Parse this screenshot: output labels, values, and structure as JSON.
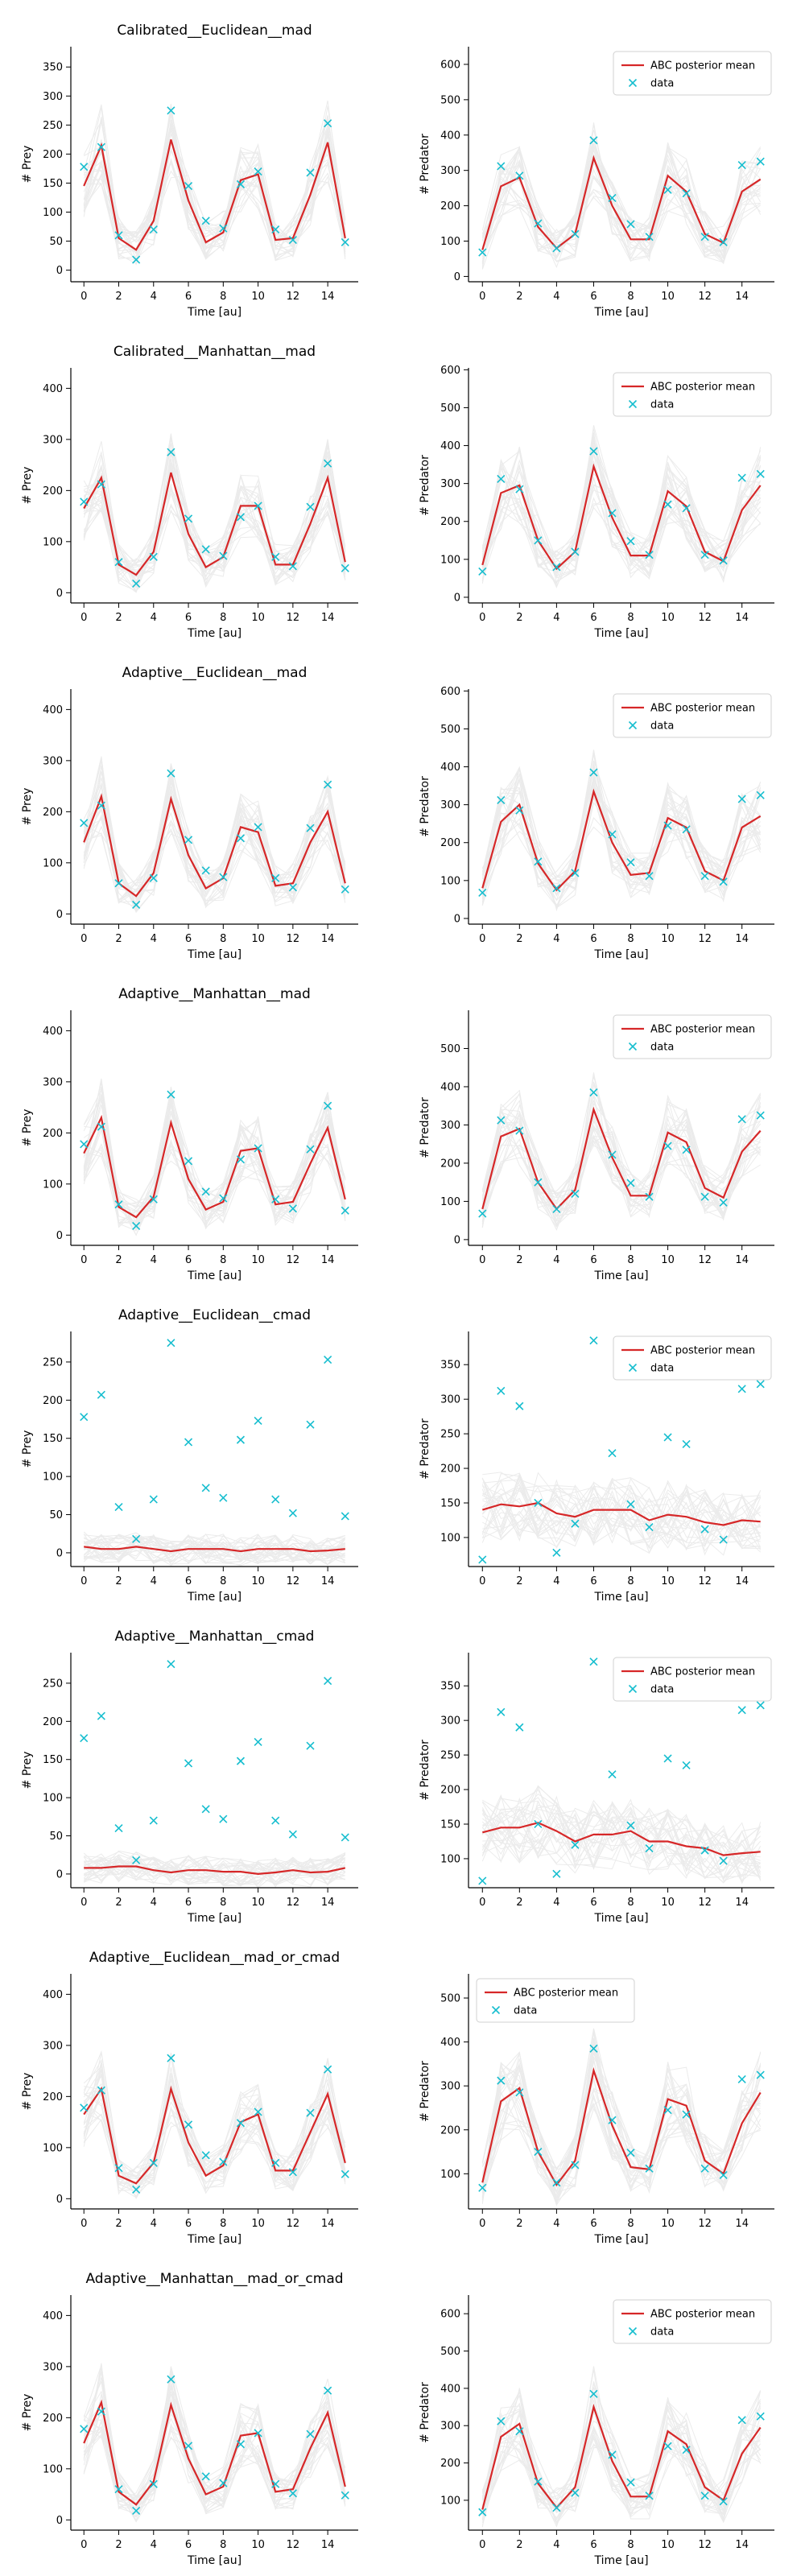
{
  "colors": {
    "posterior_mean": "#d62728",
    "data": "#17becf",
    "samples": "#c8c8c8"
  },
  "legend_labels": {
    "mean": "ABC posterior mean",
    "data": "data"
  },
  "shared": {
    "xlabel": "Time [au]",
    "ylabel_prey": "# Prey",
    "ylabel_predator": "# Predator",
    "x": [
      0,
      1,
      2,
      3,
      4,
      5,
      6,
      7,
      8,
      9,
      10,
      11,
      12,
      13,
      14,
      15
    ],
    "xticks": [
      0,
      2,
      4,
      6,
      8,
      10,
      12,
      14
    ],
    "xlim": [
      -0.75,
      15.75
    ]
  },
  "chart_data": [
    {
      "type": "line",
      "title": "Calibrated__Euclidean__mad",
      "xlabel": "Time [au]",
      "ylabel": "# Prey",
      "ylim": [
        -20,
        385
      ],
      "yticks": [
        0,
        50,
        100,
        150,
        200,
        250,
        300,
        350
      ],
      "series": [
        {
          "name": "ABC posterior mean",
          "values": [
            145,
            215,
            55,
            35,
            85,
            225,
            120,
            48,
            65,
            155,
            165,
            52,
            55,
            130,
            220,
            55
          ]
        },
        {
          "name": "data",
          "values": [
            178,
            212,
            60,
            18,
            70,
            275,
            145,
            85,
            72,
            148,
            170,
            70,
            52,
            168,
            253,
            48
          ]
        }
      ]
    },
    {
      "type": "line",
      "title": "",
      "xlabel": "Time [au]",
      "ylabel": "# Predator",
      "legend": "top-right",
      "ylim": [
        -15,
        650
      ],
      "yticks": [
        0,
        100,
        200,
        300,
        400,
        500,
        600
      ],
      "series": [
        {
          "name": "ABC posterior mean",
          "values": [
            75,
            255,
            280,
            140,
            80,
            120,
            335,
            200,
            105,
            105,
            285,
            240,
            120,
            95,
            240,
            275
          ]
        },
        {
          "name": "data",
          "values": [
            68,
            312,
            285,
            150,
            80,
            120,
            385,
            222,
            148,
            112,
            245,
            235,
            112,
            97,
            315,
            325
          ]
        }
      ]
    },
    {
      "type": "line",
      "title": "Calibrated__Manhattan__mad",
      "xlabel": "Time [au]",
      "ylabel": "# Prey",
      "ylim": [
        -20,
        440
      ],
      "yticks": [
        0,
        100,
        200,
        300,
        400
      ],
      "series": [
        {
          "name": "ABC posterior mean",
          "values": [
            165,
            225,
            55,
            35,
            80,
            235,
            115,
            50,
            70,
            170,
            170,
            55,
            55,
            135,
            225,
            60
          ]
        },
        {
          "name": "data",
          "values": [
            178,
            212,
            60,
            18,
            70,
            275,
            145,
            85,
            72,
            148,
            170,
            70,
            52,
            168,
            253,
            48
          ]
        }
      ]
    },
    {
      "type": "line",
      "title": "",
      "xlabel": "Time [au]",
      "ylabel": "# Predator",
      "legend": "top-right",
      "ylim": [
        -15,
        605
      ],
      "yticks": [
        0,
        100,
        200,
        300,
        400,
        500,
        600
      ],
      "series": [
        {
          "name": "ABC posterior mean",
          "values": [
            85,
            275,
            295,
            150,
            75,
            120,
            345,
            210,
            110,
            110,
            280,
            240,
            120,
            95,
            230,
            295
          ]
        },
        {
          "name": "data",
          "values": [
            68,
            312,
            285,
            150,
            80,
            120,
            385,
            222,
            148,
            112,
            245,
            235,
            112,
            97,
            315,
            325
          ]
        }
      ]
    },
    {
      "type": "line",
      "title": "Adaptive__Euclidean__mad",
      "xlabel": "Time [au]",
      "ylabel": "# Prey",
      "ylim": [
        -20,
        440
      ],
      "yticks": [
        0,
        100,
        200,
        300,
        400
      ],
      "series": [
        {
          "name": "ABC posterior mean",
          "values": [
            140,
            230,
            60,
            35,
            80,
            225,
            115,
            50,
            70,
            170,
            160,
            55,
            60,
            140,
            200,
            60
          ]
        },
        {
          "name": "data",
          "values": [
            178,
            212,
            60,
            18,
            70,
            275,
            145,
            85,
            72,
            148,
            170,
            70,
            52,
            168,
            253,
            48
          ]
        }
      ]
    },
    {
      "type": "line",
      "title": "",
      "xlabel": "Time [au]",
      "ylabel": "# Predator",
      "legend": "top-right",
      "ylim": [
        -15,
        605
      ],
      "yticks": [
        0,
        100,
        200,
        300,
        400,
        500,
        600
      ],
      "series": [
        {
          "name": "ABC posterior mean",
          "values": [
            80,
            255,
            300,
            145,
            75,
            125,
            335,
            200,
            115,
            120,
            265,
            240,
            125,
            100,
            240,
            270
          ]
        },
        {
          "name": "data",
          "values": [
            68,
            312,
            285,
            150,
            80,
            120,
            385,
            222,
            148,
            112,
            245,
            235,
            112,
            97,
            315,
            325
          ]
        }
      ]
    },
    {
      "type": "line",
      "title": "Adaptive__Manhattan__mad",
      "xlabel": "Time [au]",
      "ylabel": "# Prey",
      "ylim": [
        -20,
        440
      ],
      "yticks": [
        0,
        100,
        200,
        300,
        400
      ],
      "series": [
        {
          "name": "ABC posterior mean",
          "values": [
            160,
            230,
            55,
            35,
            75,
            220,
            110,
            50,
            65,
            165,
            170,
            60,
            65,
            140,
            210,
            70
          ]
        },
        {
          "name": "data",
          "values": [
            178,
            212,
            60,
            18,
            70,
            275,
            145,
            85,
            72,
            148,
            170,
            70,
            52,
            168,
            253,
            48
          ]
        }
      ]
    },
    {
      "type": "line",
      "title": "",
      "xlabel": "Time [au]",
      "ylabel": "# Predator",
      "legend": "top-right",
      "ylim": [
        -15,
        600
      ],
      "yticks": [
        0,
        100,
        200,
        300,
        400,
        500
      ],
      "series": [
        {
          "name": "ABC posterior mean",
          "values": [
            80,
            270,
            290,
            150,
            80,
            130,
            340,
            215,
            115,
            115,
            280,
            255,
            135,
            110,
            230,
            285
          ]
        },
        {
          "name": "data",
          "values": [
            68,
            312,
            285,
            150,
            80,
            120,
            385,
            222,
            148,
            112,
            245,
            235,
            112,
            97,
            315,
            325
          ]
        }
      ]
    },
    {
      "type": "line",
      "title": "Adaptive__Euclidean__cmad",
      "xlabel": "Time [au]",
      "ylabel": "# Prey",
      "ylim": [
        -18,
        290
      ],
      "yticks": [
        0,
        50,
        100,
        150,
        200,
        250
      ],
      "series": [
        {
          "name": "ABC posterior mean",
          "values": [
            8,
            5,
            5,
            8,
            5,
            2,
            5,
            5,
            5,
            2,
            5,
            5,
            5,
            2,
            3,
            5
          ]
        },
        {
          "name": "data",
          "values": [
            178,
            207,
            60,
            18,
            70,
            275,
            145,
            85,
            72,
            148,
            173,
            70,
            52,
            168,
            253,
            48
          ]
        }
      ]
    },
    {
      "type": "line",
      "title": "",
      "xlabel": "Time [au]",
      "ylabel": "# Predator",
      "legend": "top-right",
      "ylim": [
        58,
        398
      ],
      "yticks": [
        100,
        150,
        200,
        250,
        300,
        350
      ],
      "series": [
        {
          "name": "ABC posterior mean",
          "values": [
            140,
            148,
            145,
            150,
            135,
            130,
            140,
            140,
            140,
            125,
            133,
            130,
            122,
            118,
            125,
            123
          ]
        },
        {
          "name": "data",
          "values": [
            68,
            312,
            290,
            150,
            78,
            120,
            385,
            222,
            148,
            115,
            245,
            235,
            112,
            97,
            315,
            322
          ]
        }
      ]
    },
    {
      "type": "line",
      "title": "Adaptive__Manhattan__cmad",
      "xlabel": "Time [au]",
      "ylabel": "# Prey",
      "ylim": [
        -18,
        290
      ],
      "yticks": [
        0,
        50,
        100,
        150,
        200,
        250
      ],
      "series": [
        {
          "name": "ABC posterior mean",
          "values": [
            8,
            8,
            10,
            10,
            5,
            2,
            5,
            5,
            3,
            3,
            0,
            2,
            5,
            2,
            3,
            8
          ]
        },
        {
          "name": "data",
          "values": [
            178,
            207,
            60,
            18,
            70,
            275,
            145,
            85,
            72,
            148,
            173,
            70,
            52,
            168,
            253,
            48
          ]
        }
      ]
    },
    {
      "type": "line",
      "title": "",
      "xlabel": "Time [au]",
      "ylabel": "# Predator",
      "legend": "top-right",
      "ylim": [
        58,
        398
      ],
      "yticks": [
        100,
        150,
        200,
        250,
        300,
        350
      ],
      "series": [
        {
          "name": "ABC posterior mean",
          "values": [
            138,
            145,
            145,
            152,
            140,
            125,
            135,
            135,
            140,
            125,
            125,
            118,
            115,
            105,
            108,
            110
          ]
        },
        {
          "name": "data",
          "values": [
            68,
            312,
            290,
            150,
            78,
            120,
            385,
            222,
            148,
            115,
            245,
            235,
            112,
            97,
            315,
            322
          ]
        }
      ]
    },
    {
      "type": "line",
      "title": "Adaptive__Euclidean__mad_or_cmad",
      "xlabel": "Time [au]",
      "ylabel": "# Prey",
      "ylim": [
        -20,
        440
      ],
      "yticks": [
        0,
        100,
        200,
        300,
        400
      ],
      "series": [
        {
          "name": "ABC posterior mean",
          "values": [
            165,
            215,
            45,
            30,
            70,
            215,
            110,
            45,
            65,
            150,
            165,
            55,
            55,
            130,
            205,
            70
          ]
        },
        {
          "name": "data",
          "values": [
            178,
            212,
            60,
            18,
            70,
            275,
            145,
            85,
            72,
            148,
            170,
            70,
            52,
            168,
            253,
            48
          ]
        }
      ]
    },
    {
      "type": "line",
      "title": "",
      "xlabel": "Time [au]",
      "ylabel": "# Predator",
      "legend": "top-left",
      "ylim": [
        20,
        555
      ],
      "yticks": [
        100,
        200,
        300,
        400,
        500
      ],
      "series": [
        {
          "name": "ABC posterior mean",
          "values": [
            80,
            265,
            295,
            150,
            75,
            130,
            335,
            210,
            115,
            110,
            270,
            255,
            130,
            100,
            215,
            285
          ]
        },
        {
          "name": "data",
          "values": [
            68,
            312,
            285,
            150,
            80,
            120,
            385,
            222,
            148,
            112,
            245,
            235,
            112,
            97,
            315,
            325
          ]
        }
      ]
    },
    {
      "type": "line",
      "title": "Adaptive__Manhattan__mad_or_cmad",
      "xlabel": "Time [au]",
      "ylabel": "# Prey",
      "ylim": [
        -20,
        440
      ],
      "yticks": [
        0,
        100,
        200,
        300,
        400
      ],
      "series": [
        {
          "name": "ABC posterior mean",
          "values": [
            150,
            230,
            55,
            30,
            75,
            225,
            120,
            50,
            65,
            165,
            170,
            55,
            60,
            140,
            210,
            65
          ]
        },
        {
          "name": "data",
          "values": [
            178,
            212,
            60,
            18,
            70,
            275,
            145,
            85,
            72,
            148,
            170,
            70,
            52,
            168,
            253,
            48
          ]
        }
      ]
    },
    {
      "type": "line",
      "title": "",
      "xlabel": "Time [au]",
      "ylabel": "# Predator",
      "legend": "top-right",
      "ylim": [
        20,
        650
      ],
      "yticks": [
        100,
        200,
        300,
        400,
        500,
        600
      ],
      "series": [
        {
          "name": "ABC posterior mean",
          "values": [
            75,
            270,
            305,
            145,
            80,
            135,
            350,
            205,
            110,
            110,
            285,
            250,
            135,
            100,
            225,
            295
          ]
        },
        {
          "name": "data",
          "values": [
            68,
            312,
            285,
            150,
            80,
            120,
            385,
            222,
            148,
            112,
            245,
            235,
            112,
            97,
            315,
            325
          ]
        }
      ]
    }
  ]
}
